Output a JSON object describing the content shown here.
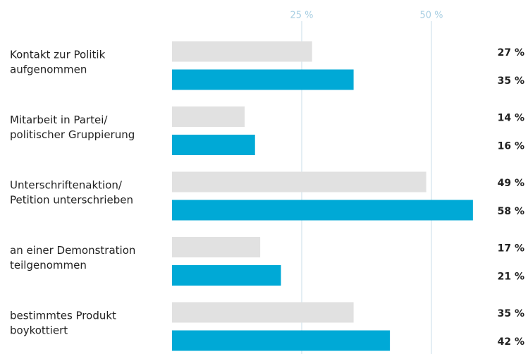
{
  "chart_data": {
    "type": "bar",
    "orientation": "horizontal",
    "categories": [
      [
        "Kontakt zur Politik",
        "aufgenommen"
      ],
      [
        "Mitarbeit in Partei/",
        "politischer Gruppierung"
      ],
      [
        "Unterschriftenaktion/",
        "Petition unterschrieben"
      ],
      [
        "an einer Demonstration",
        "teilgenommen"
      ],
      [
        "bestimmtes Produkt",
        "boykottiert"
      ]
    ],
    "series": [
      {
        "color": "#e1e1e1",
        "values": [
          27,
          14,
          49,
          17,
          35
        ],
        "value_labels": [
          "27 %",
          "14 %",
          "49 %",
          "17 %",
          "35 %"
        ]
      },
      {
        "color": "#00a9d6",
        "values": [
          35,
          16,
          58,
          21,
          42
        ],
        "value_labels": [
          "35 %",
          "16 %",
          "58 %",
          "21 %",
          "42 %"
        ]
      }
    ],
    "xlim": [
      0,
      60
    ],
    "xticks": [
      {
        "value": 25,
        "label": "25 %"
      },
      {
        "value": 50,
        "label": "50 %"
      }
    ],
    "grid": true
  }
}
